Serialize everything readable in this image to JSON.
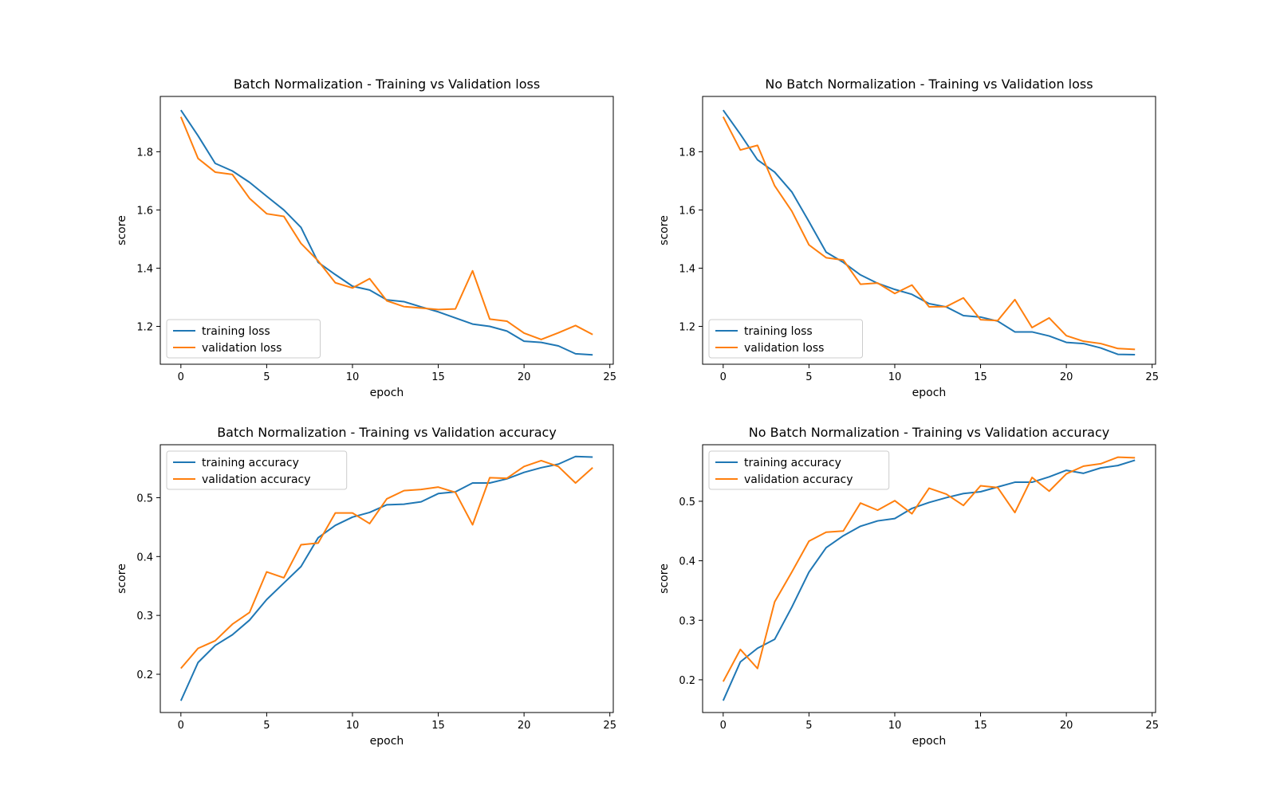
{
  "colors": {
    "training": "#1f77b4",
    "validation": "#ff7f0e",
    "axis": "#000000",
    "legend_border": "#cccccc"
  },
  "chart_data": [
    {
      "type": "line",
      "title": "Batch Normalization - Training vs Validation loss",
      "xlabel": "epoch",
      "ylabel": "score",
      "xlim": [
        -1.2,
        25.2
      ],
      "ylim": [
        1.07,
        1.99
      ],
      "xticks": [
        0,
        5,
        10,
        15,
        20,
        25
      ],
      "yticks": [
        1.2,
        1.4,
        1.6,
        1.8
      ],
      "ytick_labels": [
        "1.2",
        "1.4",
        "1.6",
        "1.8"
      ],
      "legend": "lower-left",
      "grid": false,
      "x": [
        0,
        1,
        2,
        3,
        4,
        5,
        6,
        7,
        8,
        9,
        10,
        11,
        12,
        13,
        14,
        15,
        16,
        17,
        18,
        19,
        20,
        21,
        22,
        23,
        24
      ],
      "series": [
        {
          "name": "training loss",
          "color": "training",
          "values": [
            1.943,
            1.855,
            1.76,
            1.734,
            1.695,
            1.647,
            1.6,
            1.54,
            1.42,
            1.378,
            1.338,
            1.325,
            1.291,
            1.285,
            1.267,
            1.25,
            1.229,
            1.208,
            1.2,
            1.184,
            1.149,
            1.145,
            1.133,
            1.106,
            1.102
          ]
        },
        {
          "name": "validation loss",
          "color": "validation",
          "values": [
            1.92,
            1.777,
            1.73,
            1.722,
            1.64,
            1.587,
            1.578,
            1.485,
            1.425,
            1.35,
            1.332,
            1.364,
            1.288,
            1.268,
            1.263,
            1.258,
            1.26,
            1.391,
            1.225,
            1.218,
            1.177,
            1.155,
            1.178,
            1.203,
            1.172
          ]
        }
      ]
    },
    {
      "type": "line",
      "title": "No Batch Normalization - Training vs Validation loss",
      "xlabel": "epoch",
      "ylabel": "score",
      "xlim": [
        -1.2,
        25.2
      ],
      "ylim": [
        1.07,
        1.99
      ],
      "xticks": [
        0,
        5,
        10,
        15,
        20,
        25
      ],
      "yticks": [
        1.2,
        1.4,
        1.6,
        1.8
      ],
      "ytick_labels": [
        "1.2",
        "1.4",
        "1.6",
        "1.8"
      ],
      "legend": "lower-left",
      "grid": false,
      "x": [
        0,
        1,
        2,
        3,
        4,
        5,
        6,
        7,
        8,
        9,
        10,
        11,
        12,
        13,
        14,
        15,
        16,
        17,
        18,
        19,
        20,
        21,
        22,
        23,
        24
      ],
      "series": [
        {
          "name": "training loss",
          "color": "training",
          "values": [
            1.943,
            1.86,
            1.772,
            1.73,
            1.662,
            1.56,
            1.455,
            1.42,
            1.377,
            1.348,
            1.327,
            1.31,
            1.278,
            1.267,
            1.237,
            1.232,
            1.218,
            1.181,
            1.181,
            1.167,
            1.145,
            1.141,
            1.126,
            1.104,
            1.103
          ]
        },
        {
          "name": "validation loss",
          "color": "validation",
          "values": [
            1.92,
            1.806,
            1.822,
            1.683,
            1.596,
            1.48,
            1.436,
            1.428,
            1.345,
            1.349,
            1.313,
            1.342,
            1.267,
            1.268,
            1.298,
            1.223,
            1.22,
            1.292,
            1.196,
            1.229,
            1.168,
            1.149,
            1.141,
            1.124,
            1.121
          ]
        }
      ]
    },
    {
      "type": "line",
      "title": "Batch Normalization - Training vs Validation accuracy",
      "xlabel": "epoch",
      "ylabel": "score",
      "xlim": [
        -1.2,
        25.2
      ],
      "ylim": [
        0.135,
        0.59
      ],
      "xticks": [
        0,
        5,
        10,
        15,
        20,
        25
      ],
      "yticks": [
        0.2,
        0.3,
        0.4,
        0.5
      ],
      "ytick_labels": [
        "0.2",
        "0.3",
        "0.4",
        "0.5"
      ],
      "legend": "upper-left",
      "grid": false,
      "x": [
        0,
        1,
        2,
        3,
        4,
        5,
        6,
        7,
        8,
        9,
        10,
        11,
        12,
        13,
        14,
        15,
        16,
        17,
        18,
        19,
        20,
        21,
        22,
        23,
        24
      ],
      "series": [
        {
          "name": "training accuracy",
          "color": "training",
          "values": [
            0.155,
            0.22,
            0.249,
            0.267,
            0.292,
            0.327,
            0.355,
            0.383,
            0.432,
            0.453,
            0.467,
            0.475,
            0.488,
            0.489,
            0.493,
            0.507,
            0.51,
            0.525,
            0.525,
            0.532,
            0.543,
            0.551,
            0.557,
            0.57,
            0.569
          ]
        },
        {
          "name": "validation accuracy",
          "color": "validation",
          "values": [
            0.21,
            0.244,
            0.257,
            0.285,
            0.305,
            0.374,
            0.364,
            0.42,
            0.423,
            0.474,
            0.474,
            0.456,
            0.498,
            0.512,
            0.514,
            0.518,
            0.509,
            0.454,
            0.534,
            0.533,
            0.553,
            0.563,
            0.553,
            0.525,
            0.551
          ]
        }
      ]
    },
    {
      "type": "line",
      "title": "No Batch Normalization - Training vs Validation accuracy",
      "xlabel": "epoch",
      "ylabel": "score",
      "xlim": [
        -1.2,
        25.2
      ],
      "ylim": [
        0.145,
        0.595
      ],
      "xticks": [
        0,
        5,
        10,
        15,
        20,
        25
      ],
      "yticks": [
        0.2,
        0.3,
        0.4,
        0.5
      ],
      "ytick_labels": [
        "0.2",
        "0.3",
        "0.4",
        "0.5"
      ],
      "legend": "upper-left",
      "grid": false,
      "x": [
        0,
        1,
        2,
        3,
        4,
        5,
        6,
        7,
        8,
        9,
        10,
        11,
        12,
        13,
        14,
        15,
        16,
        17,
        18,
        19,
        20,
        21,
        22,
        23,
        24
      ],
      "series": [
        {
          "name": "training accuracy",
          "color": "training",
          "values": [
            0.165,
            0.23,
            0.253,
            0.268,
            0.322,
            0.381,
            0.422,
            0.442,
            0.458,
            0.467,
            0.471,
            0.488,
            0.498,
            0.506,
            0.513,
            0.516,
            0.524,
            0.532,
            0.532,
            0.541,
            0.552,
            0.547,
            0.556,
            0.56,
            0.569
          ]
        },
        {
          "name": "validation accuracy",
          "color": "validation",
          "values": [
            0.197,
            0.251,
            0.219,
            0.331,
            0.381,
            0.433,
            0.448,
            0.45,
            0.497,
            0.485,
            0.501,
            0.479,
            0.522,
            0.512,
            0.493,
            0.526,
            0.523,
            0.481,
            0.54,
            0.517,
            0.546,
            0.559,
            0.563,
            0.574,
            0.573
          ]
        }
      ]
    }
  ]
}
